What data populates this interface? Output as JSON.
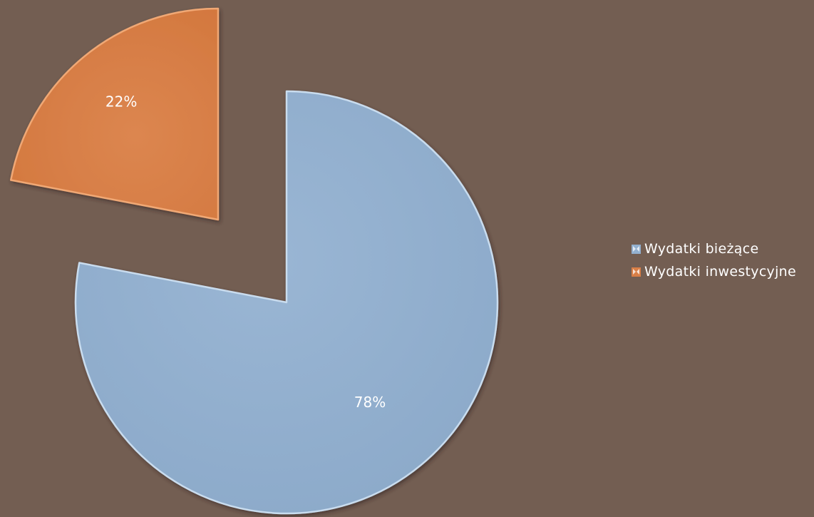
{
  "chart_data": {
    "type": "pie",
    "title": "",
    "categories": [
      "Wydatki bieżące",
      "Wydatki inwestycyjne"
    ],
    "values": [
      78,
      22
    ],
    "labels": [
      "78%",
      "22%"
    ],
    "colors": [
      "#93b0cf",
      "#d97f47"
    ],
    "legend": {
      "position": "right",
      "items": [
        {
          "label": "Wydatki bieżące",
          "color": "#93b0cf"
        },
        {
          "label": "Wydatki inwestycyjne",
          "color": "#d97f47"
        }
      ]
    },
    "exploded_slice": "Wydatki inwestycyjne"
  }
}
